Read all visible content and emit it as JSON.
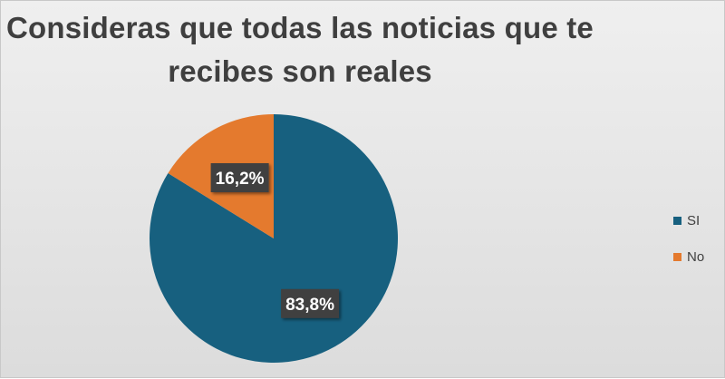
{
  "chart_data": {
    "type": "pie",
    "title_lines": [
      "Consideras que todas las noticias que te",
      "recibes son reales"
    ],
    "slices": [
      {
        "label": "SI",
        "value": 83.8,
        "display": "83,8%",
        "color": "#17607f"
      },
      {
        "label": "No",
        "value": 16.2,
        "display": "16,2%",
        "color": "#e47a2e"
      }
    ],
    "start_angle_deg": 0,
    "direction": "clockwise",
    "legend_position": "right"
  }
}
